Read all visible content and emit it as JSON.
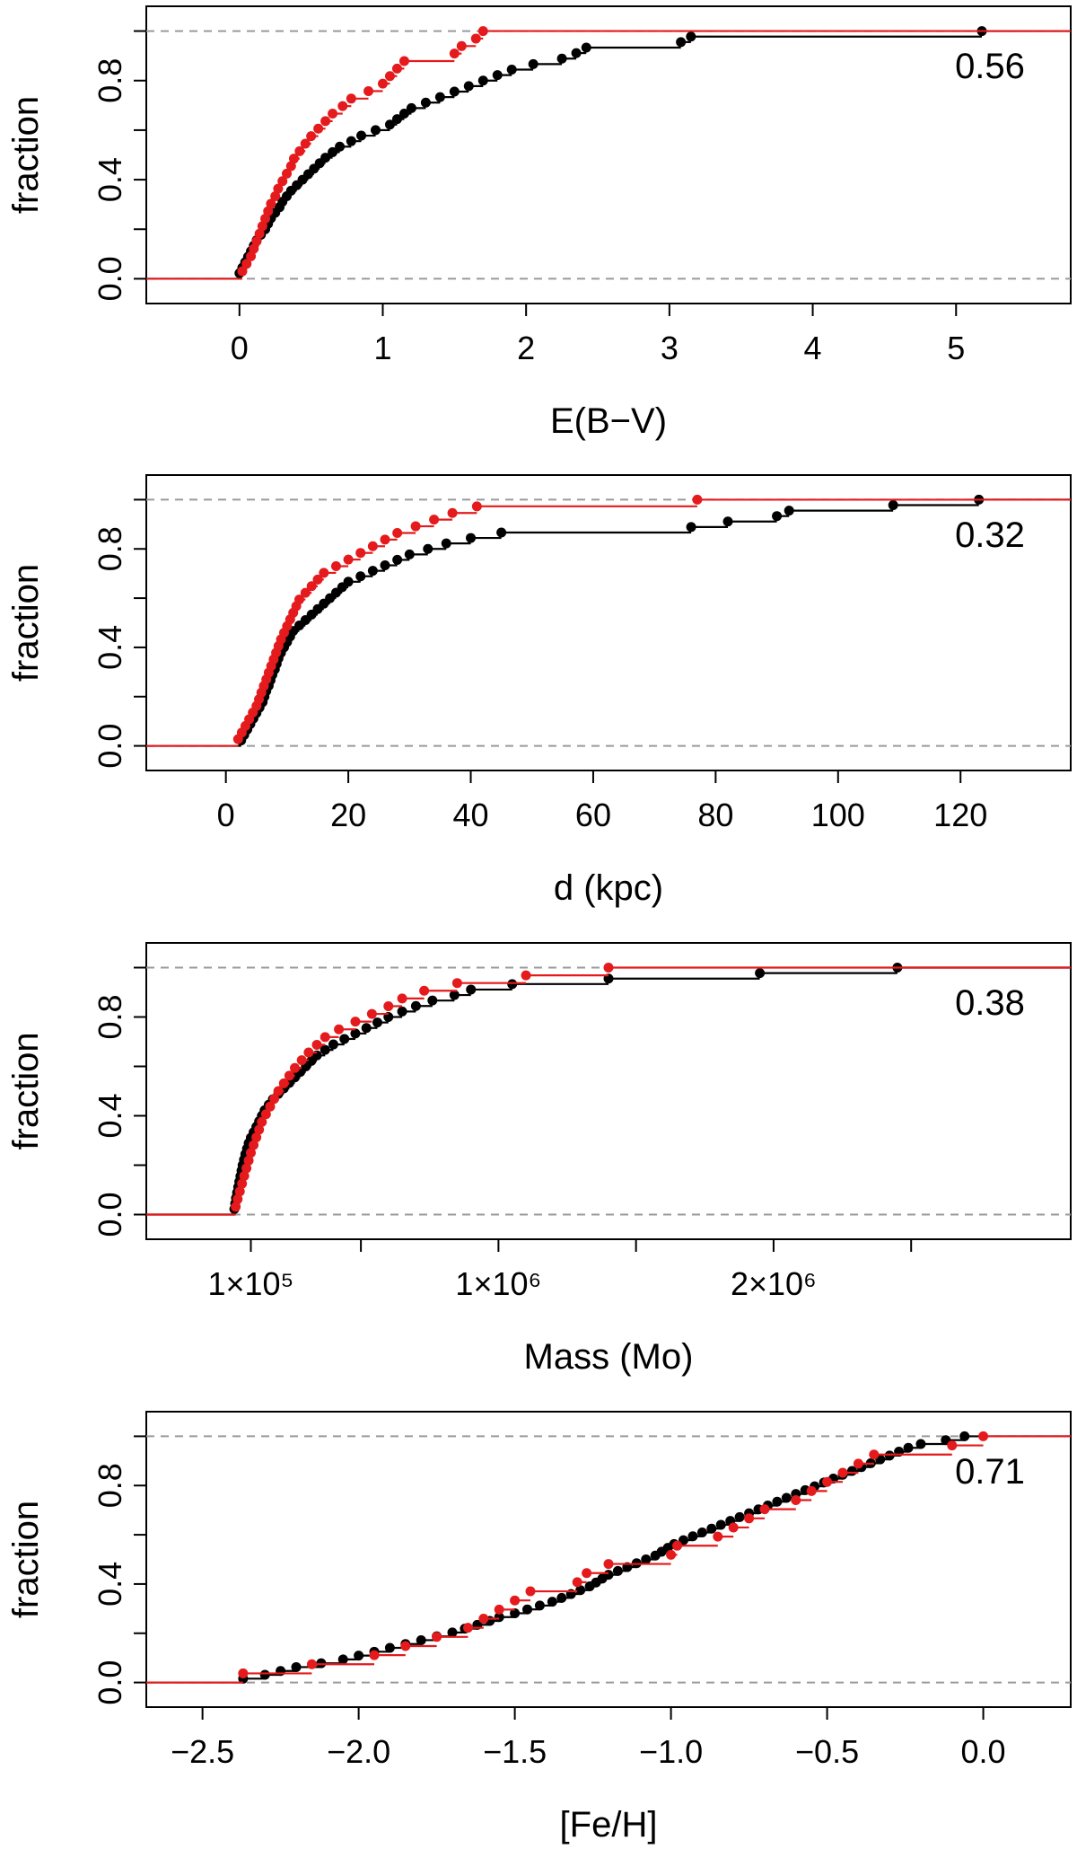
{
  "chart_data": [
    {
      "type": "line",
      "subtype": "empirical-cdf",
      "xlabel": "E(B−V)",
      "ylabel": "fraction",
      "annotation": "0.56",
      "xlim": [
        -0.65,
        5.8
      ],
      "ylim": [
        -0.1,
        1.1
      ],
      "xticks": [
        0,
        1,
        2,
        3,
        4,
        5
      ],
      "xtick_labels": [
        "0",
        "1",
        "2",
        "3",
        "4",
        "5"
      ],
      "yticks": [
        0,
        0.4,
        0.8
      ],
      "ytick_labels": [
        "0.0",
        "0.4",
        "0.8"
      ],
      "y_minor_ticks": [
        0.2,
        0.6,
        1.0
      ],
      "series": [
        {
          "name": "black",
          "color": "#000000",
          "x": [
            0.0,
            0.02,
            0.04,
            0.06,
            0.08,
            0.1,
            0.12,
            0.15,
            0.18,
            0.2,
            0.22,
            0.25,
            0.28,
            0.3,
            0.33,
            0.36,
            0.4,
            0.44,
            0.48,
            0.52,
            0.56,
            0.6,
            0.65,
            0.7,
            0.78,
            0.85,
            0.95,
            1.05,
            1.1,
            1.15,
            1.2,
            1.3,
            1.4,
            1.5,
            1.6,
            1.7,
            1.8,
            1.9,
            2.05,
            2.25,
            2.35,
            2.42,
            3.08,
            3.15,
            5.18
          ]
        },
        {
          "name": "red",
          "color": "#e41a1c",
          "x": [
            0.02,
            0.05,
            0.08,
            0.1,
            0.12,
            0.14,
            0.16,
            0.18,
            0.2,
            0.22,
            0.25,
            0.27,
            0.3,
            0.33,
            0.36,
            0.38,
            0.42,
            0.46,
            0.5,
            0.55,
            0.6,
            0.65,
            0.72,
            0.78,
            0.9,
            1.0,
            1.05,
            1.1,
            1.15,
            1.5,
            1.55,
            1.65,
            1.7
          ]
        }
      ]
    },
    {
      "type": "line",
      "subtype": "empirical-cdf",
      "xlabel": "d (kpc)",
      "ylabel": "fraction",
      "annotation": "0.32",
      "xlim": [
        -13,
        138
      ],
      "ylim": [
        -0.1,
        1.1
      ],
      "xticks": [
        0,
        20,
        40,
        60,
        80,
        100,
        120
      ],
      "xtick_labels": [
        "0",
        "20",
        "40",
        "60",
        "80",
        "100",
        "120"
      ],
      "yticks": [
        0,
        0.4,
        0.8
      ],
      "ytick_labels": [
        "0.0",
        "0.4",
        "0.8"
      ],
      "y_minor_ticks": [
        0.2,
        0.6,
        1.0
      ],
      "series": [
        {
          "name": "black",
          "color": "#000000",
          "x": [
            2.5,
            3,
            3.5,
            4,
            4.5,
            5,
            5.5,
            6,
            6.3,
            6.6,
            7,
            7.3,
            7.6,
            8,
            8.3,
            8.6,
            9,
            9.5,
            10,
            10.5,
            11,
            12,
            13,
            14,
            15,
            16,
            17,
            18,
            19,
            20,
            22,
            24,
            26,
            28,
            30,
            33,
            36,
            40,
            45,
            76,
            82,
            90,
            92,
            109,
            123
          ]
        },
        {
          "name": "red",
          "color": "#e41a1c",
          "x": [
            2,
            2.6,
            3.2,
            3.8,
            4.4,
            5,
            5.4,
            5.8,
            6.2,
            6.6,
            7,
            7.4,
            7.8,
            8.2,
            8.6,
            9,
            9.5,
            10,
            10.5,
            11,
            11.5,
            12,
            13,
            14,
            15,
            16,
            18,
            20,
            22,
            24,
            26,
            28,
            31,
            34,
            37,
            41,
            77
          ]
        }
      ]
    },
    {
      "type": "line",
      "subtype": "empirical-cdf",
      "xlabel": "Mass (Mo)",
      "ylabel": "fraction",
      "annotation": "0.38",
      "xlim": [
        -280000,
        3080000
      ],
      "ylim": [
        -0.1,
        1.1
      ],
      "xticks": [
        100000,
        1000000,
        2000000
      ],
      "xtick_labels": [
        "1×10⁵",
        "1×10⁶",
        "2×10⁶"
      ],
      "x_minor_ticks": [
        500000,
        1500000,
        2500000
      ],
      "yticks": [
        0,
        0.4,
        0.8
      ],
      "ytick_labels": [
        "0.0",
        "0.4",
        "0.8"
      ],
      "y_minor_ticks": [
        0.2,
        0.6,
        1.0
      ],
      "series": [
        {
          "name": "black",
          "color": "#000000",
          "x": [
            40000,
            43000,
            46000,
            50000,
            54000,
            58000,
            62000,
            66000,
            70000,
            75000,
            80000,
            86000,
            92000,
            100000,
            110000,
            120000,
            130000,
            140000,
            150000,
            165000,
            180000,
            200000,
            220000,
            240000,
            260000,
            280000,
            300000,
            320000,
            340000,
            370000,
            400000,
            440000,
            480000,
            520000,
            560000,
            600000,
            650000,
            700000,
            760000,
            840000,
            900000,
            1050000,
            1400000,
            1950000,
            2450000
          ]
        },
        {
          "name": "red",
          "color": "#e41a1c",
          "x": [
            45000,
            52000,
            60000,
            68000,
            76000,
            84000,
            92000,
            100000,
            110000,
            120000,
            130000,
            140000,
            155000,
            170000,
            185000,
            200000,
            220000,
            240000,
            260000,
            285000,
            310000,
            340000,
            370000,
            420000,
            480000,
            540000,
            600000,
            650000,
            730000,
            850000,
            1100000,
            1400000
          ]
        }
      ]
    },
    {
      "type": "line",
      "subtype": "empirical-cdf",
      "xlabel": "[Fe/H]",
      "ylabel": "fraction",
      "annotation": "0.71",
      "xlim": [
        -2.68,
        0.28
      ],
      "ylim": [
        -0.1,
        1.1
      ],
      "xticks": [
        -2.5,
        -2.0,
        -1.5,
        -1.0,
        -0.5,
        0.0
      ],
      "xtick_labels": [
        "−2.5",
        "−2.0",
        "−1.5",
        "−1.0",
        "−0.5",
        "0.0"
      ],
      "yticks": [
        0,
        0.4,
        0.8
      ],
      "ytick_labels": [
        "0.0",
        "0.4",
        "0.8"
      ],
      "y_minor_ticks": [
        0.2,
        0.6,
        1.0
      ],
      "series": [
        {
          "name": "black",
          "color": "#000000",
          "x": [
            -2.37,
            -2.3,
            -2.25,
            -2.2,
            -2.12,
            -2.05,
            -2.0,
            -1.95,
            -1.9,
            -1.85,
            -1.8,
            -1.75,
            -1.7,
            -1.66,
            -1.62,
            -1.58,
            -1.55,
            -1.5,
            -1.46,
            -1.42,
            -1.38,
            -1.35,
            -1.32,
            -1.29,
            -1.26,
            -1.24,
            -1.22,
            -1.2,
            -1.17,
            -1.14,
            -1.11,
            -1.08,
            -1.05,
            -1.03,
            -1.01,
            -0.99,
            -0.96,
            -0.93,
            -0.9,
            -0.87,
            -0.84,
            -0.81,
            -0.78,
            -0.75,
            -0.72,
            -0.69,
            -0.66,
            -0.63,
            -0.6,
            -0.57,
            -0.54,
            -0.51,
            -0.48,
            -0.45,
            -0.42,
            -0.39,
            -0.36,
            -0.33,
            -0.3,
            -0.27,
            -0.24,
            -0.2,
            -0.12,
            -0.06
          ]
        },
        {
          "name": "red",
          "color": "#e41a1c",
          "x": [
            -2.37,
            -2.15,
            -1.95,
            -1.85,
            -1.75,
            -1.65,
            -1.6,
            -1.55,
            -1.5,
            -1.45,
            -1.3,
            -1.27,
            -1.2,
            -1.0,
            -0.98,
            -0.85,
            -0.8,
            -0.75,
            -0.7,
            -0.6,
            -0.55,
            -0.5,
            -0.45,
            -0.4,
            -0.35,
            -0.1,
            0.0
          ]
        }
      ]
    }
  ]
}
